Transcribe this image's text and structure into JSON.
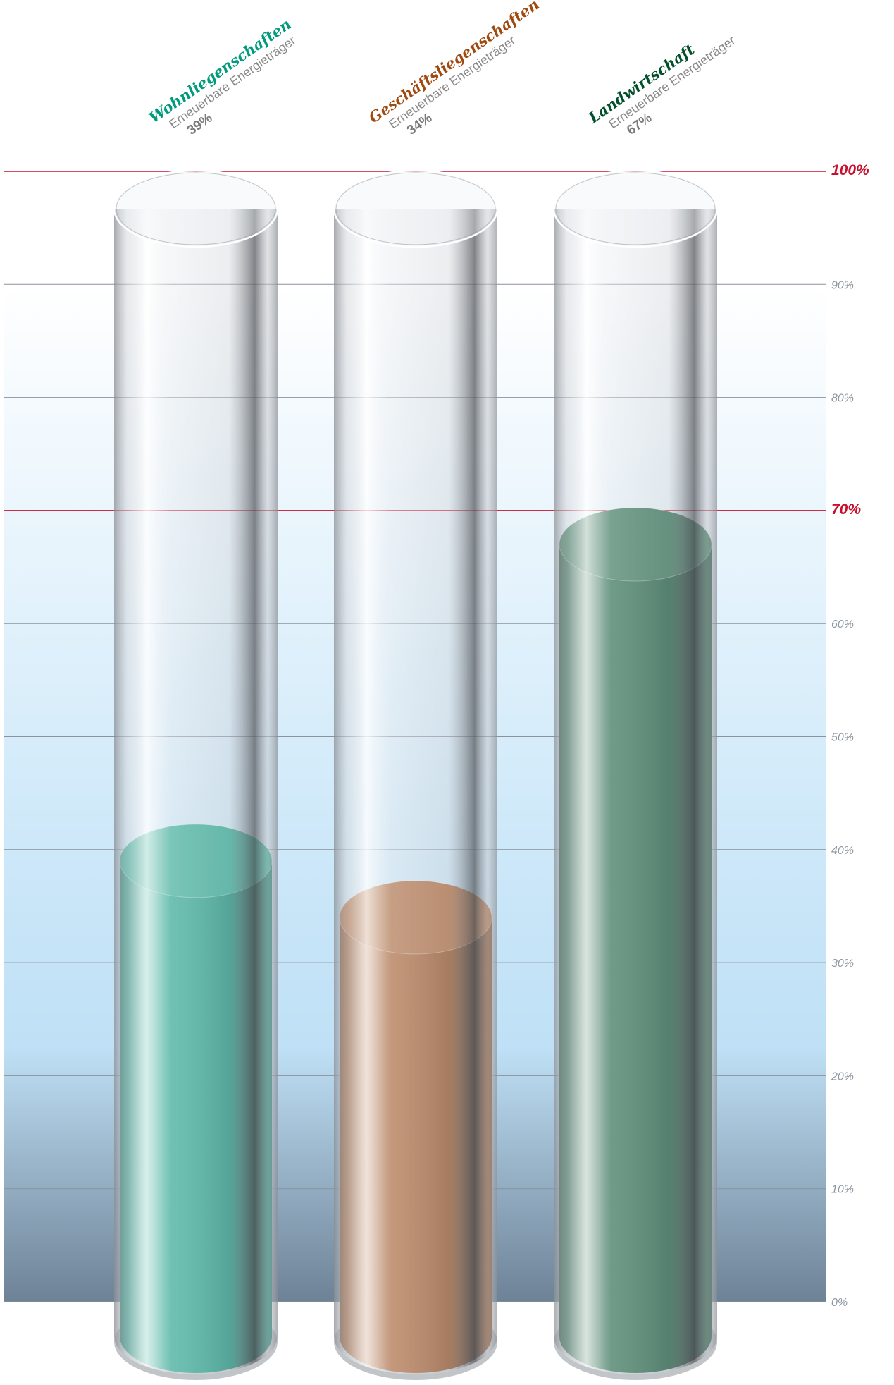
{
  "chart_data": {
    "type": "bar",
    "categories": [
      "Wohnliegenschaften",
      "Geschäftsliegenschaften",
      "Landwirtschaft"
    ],
    "subtitle_per_category": "Erneuerbare Energieträger",
    "values": [
      39,
      34,
      67
    ],
    "value_labels": [
      "39%",
      "34%",
      "67%"
    ],
    "colors": [
      "#009a7c",
      "#a04a10",
      "#00502a"
    ],
    "ylim": [
      0,
      100
    ],
    "ticks": [
      {
        "value": 0,
        "label": "0%",
        "major": false
      },
      {
        "value": 10,
        "label": "10%",
        "major": false
      },
      {
        "value": 20,
        "label": "20%",
        "major": false
      },
      {
        "value": 30,
        "label": "30%",
        "major": false
      },
      {
        "value": 40,
        "label": "40%",
        "major": false
      },
      {
        "value": 50,
        "label": "50%",
        "major": false
      },
      {
        "value": 60,
        "label": "60%",
        "major": false
      },
      {
        "value": 70,
        "label": "70%",
        "major": true
      },
      {
        "value": 80,
        "label": "80%",
        "major": false
      },
      {
        "value": 90,
        "label": "90%",
        "major": false
      },
      {
        "value": 100,
        "label": "100%",
        "major": true
      }
    ],
    "grid": true,
    "reference_line_color": "#c8102e",
    "background_gradient": [
      "#ffffff",
      "#c4e4f8",
      "#6e8296"
    ]
  }
}
